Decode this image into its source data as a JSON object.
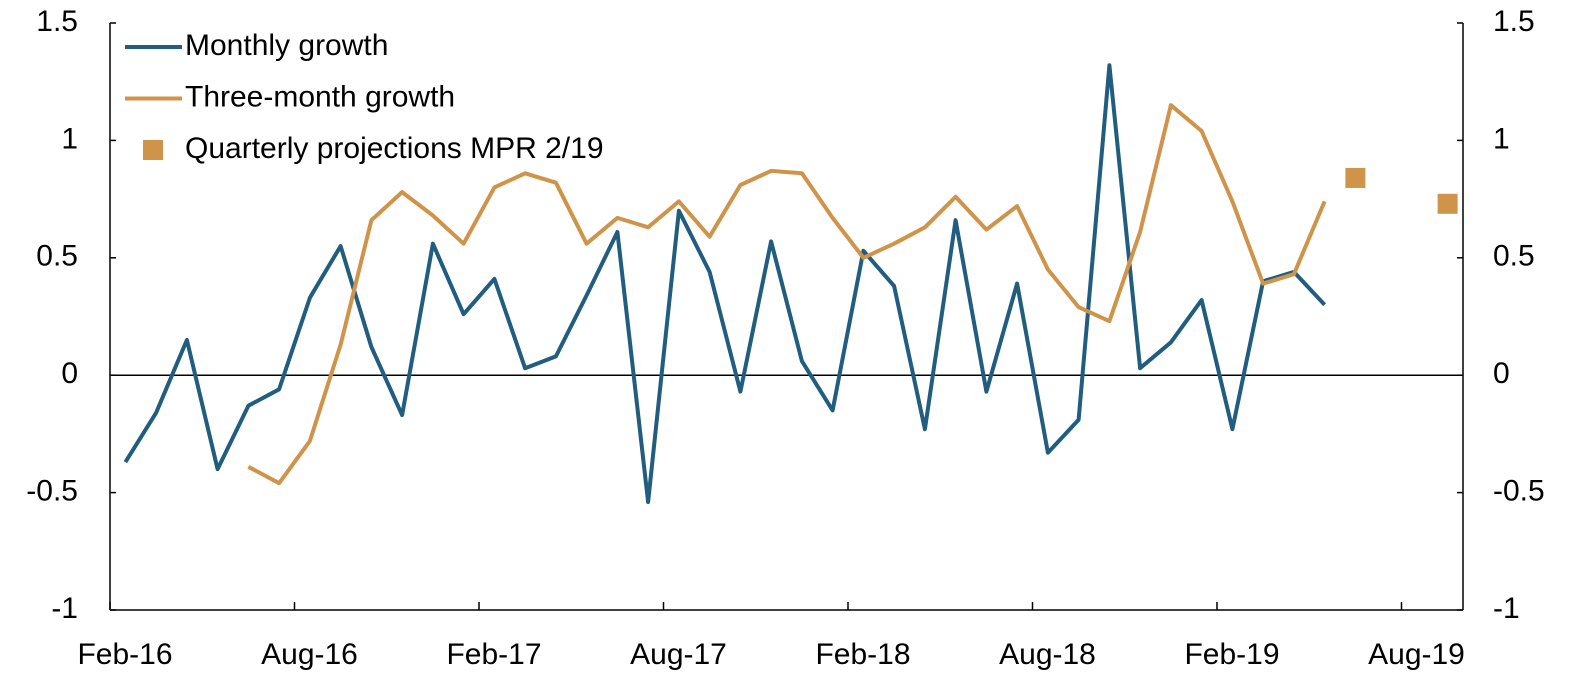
{
  "chart_data": {
    "type": "line",
    "categories": [
      "Feb-16",
      null,
      null,
      null,
      null,
      null,
      "Aug-16",
      null,
      null,
      null,
      null,
      null,
      "Feb-17",
      null,
      null,
      null,
      null,
      null,
      "Aug-17",
      null,
      null,
      null,
      null,
      null,
      "Feb-18",
      null,
      null,
      null,
      null,
      null,
      "Aug-18",
      null,
      null,
      null,
      null,
      null,
      "Feb-19",
      null,
      null,
      null,
      null,
      null,
      "Aug-19",
      null
    ],
    "series": [
      {
        "name": "Monthly growth",
        "color": "#215d7e",
        "kind": "line",
        "values": [
          -0.37,
          -0.16,
          0.15,
          -0.4,
          -0.13,
          -0.06,
          0.33,
          0.55,
          0.12,
          -0.17,
          0.56,
          0.26,
          0.41,
          0.03,
          0.08,
          0.34,
          0.61,
          -0.54,
          0.7,
          0.44,
          -0.07,
          0.57,
          0.06,
          -0.15,
          0.53,
          0.38,
          -0.23,
          0.66,
          -0.07,
          0.39,
          -0.33,
          -0.19,
          1.32,
          0.03,
          0.14,
          0.32,
          -0.23,
          0.4,
          0.44,
          0.3,
          null,
          null,
          null,
          null
        ]
      },
      {
        "name": "Three-month growth",
        "color": "#d0934a",
        "kind": "line",
        "values": [
          null,
          null,
          null,
          null,
          -0.39,
          -0.46,
          -0.28,
          0.13,
          0.66,
          0.78,
          0.68,
          0.56,
          0.8,
          0.86,
          0.82,
          0.56,
          0.67,
          0.63,
          0.74,
          0.59,
          0.81,
          0.87,
          0.86,
          0.67,
          0.5,
          0.56,
          0.63,
          0.76,
          0.62,
          0.72,
          0.45,
          0.29,
          0.23,
          0.61,
          1.15,
          1.04,
          0.74,
          0.39,
          0.43,
          0.74,
          null,
          null,
          null,
          null
        ]
      },
      {
        "name": "Quarterly projections MPR 2/19",
        "color": "#d0934a",
        "kind": "square",
        "values": [
          null,
          null,
          null,
          null,
          null,
          null,
          null,
          null,
          null,
          null,
          null,
          null,
          null,
          null,
          null,
          null,
          null,
          null,
          null,
          null,
          null,
          null,
          null,
          null,
          null,
          null,
          null,
          null,
          null,
          null,
          null,
          null,
          null,
          null,
          null,
          null,
          null,
          null,
          null,
          null,
          0.84,
          null,
          null,
          0.73
        ]
      }
    ],
    "ylim": [
      -1,
      1.5
    ],
    "yticks": [
      1.5,
      1,
      0.5,
      0,
      -0.5,
      -1
    ],
    "y2lim": [
      -1,
      1.5
    ],
    "y2ticks": [
      1.5,
      1,
      0.5,
      0,
      -0.5,
      -1
    ],
    "legend": "upper-left"
  }
}
